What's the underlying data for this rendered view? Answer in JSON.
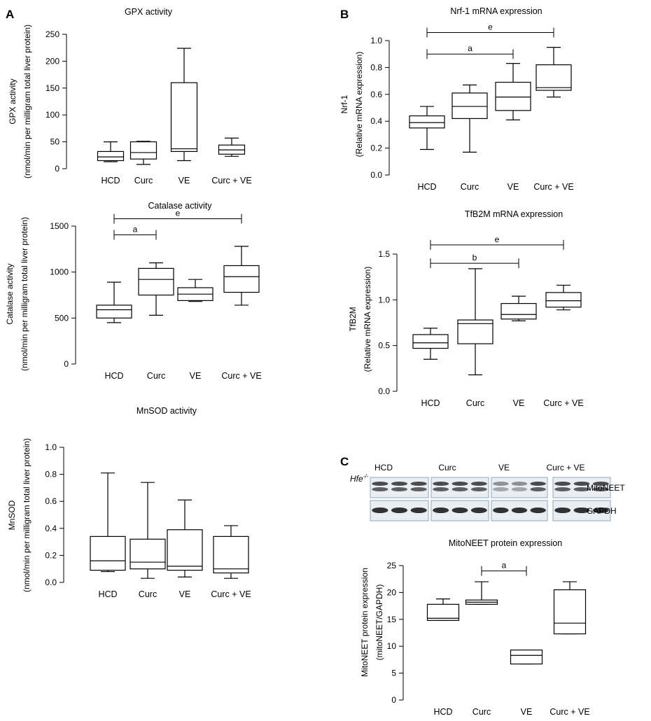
{
  "panel_labels": {
    "a": "A",
    "b": "B",
    "c": "C"
  },
  "blot": {
    "genotype_label": "Hfe-/-",
    "genotype_base": "Hfe",
    "genotype_sup": "-/-",
    "groups": [
      "HCD",
      "Curc",
      "VE",
      "Curc + VE"
    ],
    "protein_label": "MitoNEET",
    "loading_label": "GAPDH"
  },
  "chart_data": [
    {
      "id": "gpx",
      "type": "box",
      "title": "GPX activity",
      "ylabel_lines": [
        "GPX activity",
        "(nmol/min per milligram total liver protein)"
      ],
      "ylim": [
        0,
        250
      ],
      "yticks": [
        0,
        50,
        100,
        150,
        200,
        250
      ],
      "categories": [
        "HCD",
        "Curc",
        "VE",
        "Curc + VE"
      ],
      "boxes": [
        {
          "min": 13,
          "q1": 15,
          "median": 22,
          "q3": 32,
          "max": 50
        },
        {
          "min": 8,
          "q1": 18,
          "median": 30,
          "q3": 50,
          "max": 51
        },
        {
          "min": 15,
          "q1": 32,
          "median": 37,
          "q3": 160,
          "max": 224
        },
        {
          "min": 23,
          "q1": 27,
          "median": 35,
          "q3": 44,
          "max": 57
        }
      ],
      "comparisons": []
    },
    {
      "id": "catalase",
      "type": "box",
      "title": "Catalase activity",
      "ylabel_lines": [
        "Catalase activity",
        "(nmol/min per milligram total liver protein)"
      ],
      "ylim": [
        0,
        1500
      ],
      "yticks": [
        0,
        500,
        1000,
        1500
      ],
      "categories": [
        "HCD",
        "Curc",
        "VE",
        "Curc + VE"
      ],
      "boxes": [
        {
          "min": 450,
          "q1": 500,
          "median": 590,
          "q3": 640,
          "max": 890
        },
        {
          "min": 530,
          "q1": 750,
          "median": 920,
          "q3": 1040,
          "max": 1100
        },
        {
          "min": 680,
          "q1": 690,
          "median": 760,
          "q3": 830,
          "max": 920
        },
        {
          "min": 640,
          "q1": 780,
          "median": 950,
          "q3": 1070,
          "max": 1280
        }
      ],
      "comparisons": [
        {
          "from": 0,
          "to": 1,
          "label": "a",
          "y": 1405
        },
        {
          "from": 0,
          "to": 3,
          "label": "e",
          "y": 1580
        }
      ]
    },
    {
      "id": "mnsod",
      "type": "box",
      "title": "MnSOD activity",
      "ylabel_lines": [
        "MnSOD",
        "(nmol/min per milligram total liver protein)"
      ],
      "ylim": [
        0,
        1.0
      ],
      "yticks": [
        0.0,
        0.2,
        0.4,
        0.6,
        0.8,
        1.0
      ],
      "categories": [
        "HCD",
        "Curc",
        "VE",
        "Curc + VE"
      ],
      "boxes": [
        {
          "min": 0.08,
          "q1": 0.09,
          "median": 0.16,
          "q3": 0.34,
          "max": 0.81
        },
        {
          "min": 0.03,
          "q1": 0.1,
          "median": 0.15,
          "q3": 0.32,
          "max": 0.74
        },
        {
          "min": 0.04,
          "q1": 0.09,
          "median": 0.12,
          "q3": 0.39,
          "max": 0.61
        },
        {
          "min": 0.03,
          "q1": 0.07,
          "median": 0.1,
          "q3": 0.34,
          "max": 0.42
        }
      ],
      "comparisons": []
    },
    {
      "id": "nrf1",
      "type": "box",
      "title": "Nrf-1 mRNA expression",
      "ylabel_lines": [
        "Nrf-1",
        "(Relative mRNA expression)"
      ],
      "ylim": [
        0,
        1.0
      ],
      "yticks": [
        0.0,
        0.2,
        0.4,
        0.6,
        0.8,
        1.0
      ],
      "categories": [
        "HCD",
        "Curc",
        "VE",
        "Curc + VE"
      ],
      "boxes": [
        {
          "min": 0.19,
          "q1": 0.35,
          "median": 0.39,
          "q3": 0.44,
          "max": 0.51
        },
        {
          "min": 0.17,
          "q1": 0.42,
          "median": 0.51,
          "q3": 0.61,
          "max": 0.67
        },
        {
          "min": 0.41,
          "q1": 0.48,
          "median": 0.58,
          "q3": 0.69,
          "max": 0.83
        },
        {
          "min": 0.58,
          "q1": 0.63,
          "median": 0.65,
          "q3": 0.82,
          "max": 0.95
        }
      ],
      "comparisons": [
        {
          "from": 0,
          "to": 2,
          "label": "a",
          "y": 0.9
        },
        {
          "from": 0,
          "to": 3,
          "label": "e",
          "y": 1.06
        }
      ]
    },
    {
      "id": "tfb2m",
      "type": "box",
      "title": "TfB2M mRNA expression",
      "ylabel_lines": [
        "TfB2M",
        "(Relative mRNA expression)"
      ],
      "ylim": [
        0,
        1.5
      ],
      "yticks": [
        0.0,
        0.5,
        1.0,
        1.5
      ],
      "categories": [
        "HCD",
        "Curc",
        "VE",
        "Curc + VE"
      ],
      "boxes": [
        {
          "min": 0.35,
          "q1": 0.47,
          "median": 0.53,
          "q3": 0.62,
          "max": 0.69
        },
        {
          "min": 0.18,
          "q1": 0.52,
          "median": 0.74,
          "q3": 0.78,
          "max": 1.34
        },
        {
          "min": 0.77,
          "q1": 0.79,
          "median": 0.84,
          "q3": 0.96,
          "max": 1.04
        },
        {
          "min": 0.89,
          "q1": 0.92,
          "median": 0.99,
          "q3": 1.08,
          "max": 1.16
        }
      ],
      "comparisons": [
        {
          "from": 0,
          "to": 2,
          "label": "b",
          "y": 1.4
        },
        {
          "from": 0,
          "to": 3,
          "label": "e",
          "y": 1.6
        }
      ]
    },
    {
      "id": "mitoneet",
      "type": "box",
      "title": "MitoNEET protein expression",
      "ylabel_lines": [
        "MitoNEET protein expression",
        "(mitoNEET/GAPDH)"
      ],
      "ylim": [
        0,
        25
      ],
      "yticks": [
        0,
        5,
        10,
        15,
        20,
        25
      ],
      "categories": [
        "HCD",
        "Curc",
        "VE",
        "Curc + VE"
      ],
      "boxes": [
        {
          "min": 14.8,
          "q1": 14.8,
          "median": 15.2,
          "q3": 17.8,
          "max": 18.8
        },
        {
          "min": 17.8,
          "q1": 17.8,
          "median": 18.2,
          "q3": 18.6,
          "max": 22.0
        },
        {
          "min": 6.7,
          "q1": 6.7,
          "median": 8.3,
          "q3": 9.3,
          "max": 9.3
        },
        {
          "min": 12.3,
          "q1": 12.3,
          "median": 14.3,
          "q3": 20.5,
          "max": 22.0
        }
      ],
      "comparisons": [
        {
          "from": 1,
          "to": 2,
          "label": "a",
          "y": 24.0
        }
      ]
    }
  ]
}
